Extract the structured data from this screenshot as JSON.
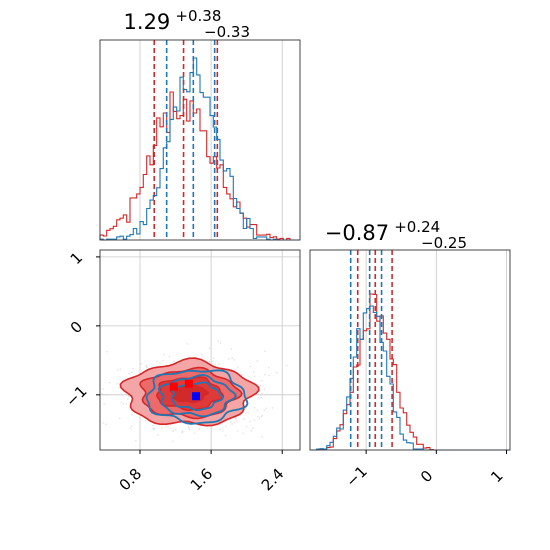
{
  "colors": {
    "red": "#d62728",
    "blue": "#1f77b4",
    "red_fill": "#f4a6a6",
    "grid": "#c8c8c8"
  },
  "chart_data": {
    "type": "corner",
    "grid": true,
    "parameters": [
      {
        "id": "p0",
        "xlim": [
          0.35,
          2.6
        ],
        "ticks": [
          0.8,
          1.6,
          2.4
        ],
        "tick_labels": [
          "0.8",
          "1.6",
          "2.4"
        ]
      },
      {
        "id": "p1",
        "ylim": [
          -1.8,
          1.1
        ],
        "xlim": [
          -1.8,
          1.05
        ],
        "ticks": [
          -1,
          0,
          1
        ],
        "tick_labels": [
          "−1",
          "0",
          "1"
        ]
      }
    ],
    "titles": [
      {
        "param": "p0",
        "median": "1.29",
        "upper": "+0.38",
        "lower": "−0.33"
      },
      {
        "param": "p1",
        "median": "−0.87",
        "upper": "+0.24",
        "lower": "−0.25"
      }
    ],
    "series": [
      {
        "color": "red",
        "p0_quantiles": [
          0.96,
          1.29,
          1.67
        ],
        "p1_quantiles": [
          -1.12,
          -0.87,
          -0.63
        ],
        "center": [
          1.35,
          -0.98
        ],
        "spread": [
          0.36,
          0.23
        ],
        "markers": [
          [
            1.18,
            -0.88
          ],
          [
            1.35,
            -0.84
          ]
        ]
      },
      {
        "color": "blue",
        "p0_quantiles": [
          1.1,
          1.4,
          1.64
        ],
        "p1_quantiles": [
          -1.22,
          -0.95,
          -0.78
        ],
        "center": [
          1.43,
          -1.02
        ],
        "spread": [
          0.29,
          0.2
        ],
        "markers": [
          [
            1.43,
            -1.02
          ]
        ]
      }
    ]
  }
}
